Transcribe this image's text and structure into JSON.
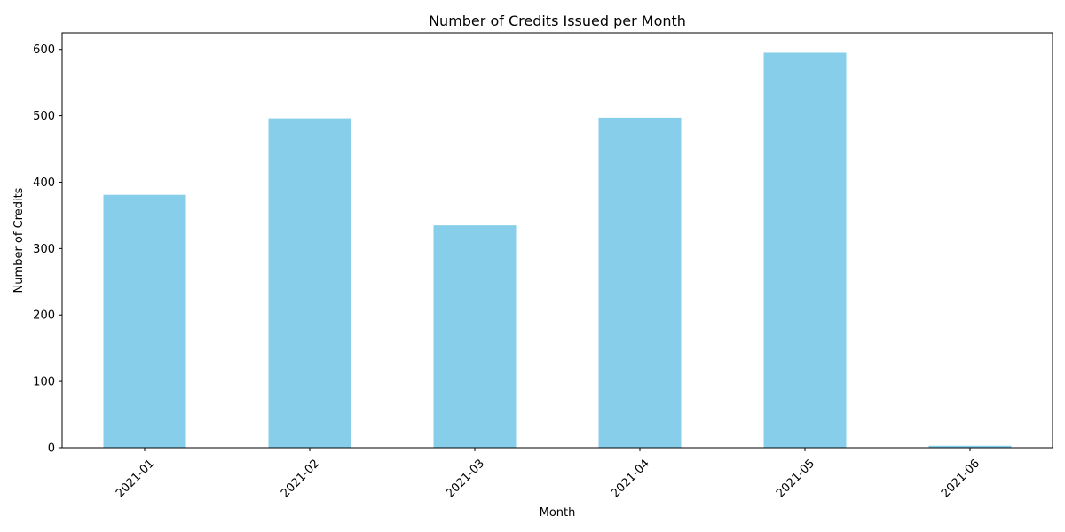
{
  "chart_data": {
    "type": "bar",
    "title": "Number of Credits Issued per Month",
    "xlabel": "Month",
    "ylabel": "Number of Credits",
    "categories": [
      "2021-01",
      "2021-02",
      "2021-03",
      "2021-04",
      "2021-05",
      "2021-06"
    ],
    "values": [
      381,
      496,
      335,
      497,
      595,
      3
    ],
    "ylim": [
      0,
      625
    ],
    "yticks": [
      0,
      100,
      200,
      300,
      400,
      500,
      600
    ],
    "x_tick_rotation_deg": 45,
    "grid": false,
    "legend": "none",
    "bar_color": "#87ceeb"
  }
}
